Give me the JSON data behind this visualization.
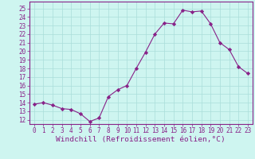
{
  "x": [
    0,
    1,
    2,
    3,
    4,
    5,
    6,
    7,
    8,
    9,
    10,
    11,
    12,
    13,
    14,
    15,
    16,
    17,
    18,
    19,
    20,
    21,
    22,
    23
  ],
  "y": [
    13.8,
    14.0,
    13.7,
    13.3,
    13.2,
    12.7,
    11.8,
    12.2,
    14.7,
    15.5,
    16.0,
    18.0,
    19.9,
    22.0,
    23.3,
    23.2,
    24.8,
    24.6,
    24.7,
    23.2,
    21.0,
    20.2,
    18.2,
    17.4
  ],
  "line_color": "#882288",
  "marker": "D",
  "marker_size": 2.2,
  "bg_color": "#cef5f0",
  "grid_color": "#aaddda",
  "xlabel": "Windchill (Refroidissement éolien,°C)",
  "ylabel_ticks": [
    12,
    13,
    14,
    15,
    16,
    17,
    18,
    19,
    20,
    21,
    22,
    23,
    24,
    25
  ],
  "ylim": [
    11.5,
    25.8
  ],
  "xlim": [
    -0.5,
    23.5
  ],
  "tick_fontsize": 5.5,
  "xlabel_fontsize": 6.8,
  "spine_color": "#882288"
}
